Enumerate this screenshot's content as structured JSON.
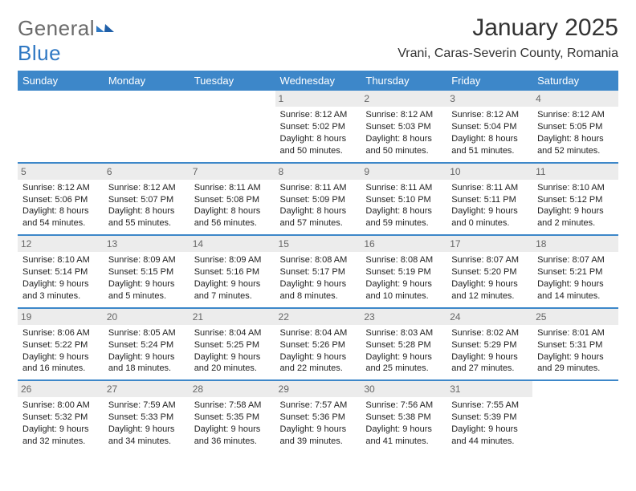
{
  "logo": {
    "text_a": "General",
    "text_b": "Blue"
  },
  "title": "January 2025",
  "subtitle": "Vrani, Caras-Severin County, Romania",
  "colors": {
    "brand_blue": "#3d87c9",
    "brand_blue_dark": "#2f78c3",
    "header_text": "#ffffff",
    "daynum_bg": "#ececec",
    "daynum_fg": "#666666",
    "body_text": "#222222",
    "grid_line": "#c7c7c7",
    "page_bg": "#ffffff"
  },
  "weekdays": [
    "Sunday",
    "Monday",
    "Tuesday",
    "Wednesday",
    "Thursday",
    "Friday",
    "Saturday"
  ],
  "start_weekday_index": 3,
  "days": [
    {
      "n": 1,
      "sunrise": "8:12 AM",
      "sunset": "5:02 PM",
      "daylight": "8 hours and 50 minutes."
    },
    {
      "n": 2,
      "sunrise": "8:12 AM",
      "sunset": "5:03 PM",
      "daylight": "8 hours and 50 minutes."
    },
    {
      "n": 3,
      "sunrise": "8:12 AM",
      "sunset": "5:04 PM",
      "daylight": "8 hours and 51 minutes."
    },
    {
      "n": 4,
      "sunrise": "8:12 AM",
      "sunset": "5:05 PM",
      "daylight": "8 hours and 52 minutes."
    },
    {
      "n": 5,
      "sunrise": "8:12 AM",
      "sunset": "5:06 PM",
      "daylight": "8 hours and 54 minutes."
    },
    {
      "n": 6,
      "sunrise": "8:12 AM",
      "sunset": "5:07 PM",
      "daylight": "8 hours and 55 minutes."
    },
    {
      "n": 7,
      "sunrise": "8:11 AM",
      "sunset": "5:08 PM",
      "daylight": "8 hours and 56 minutes."
    },
    {
      "n": 8,
      "sunrise": "8:11 AM",
      "sunset": "5:09 PM",
      "daylight": "8 hours and 57 minutes."
    },
    {
      "n": 9,
      "sunrise": "8:11 AM",
      "sunset": "5:10 PM",
      "daylight": "8 hours and 59 minutes."
    },
    {
      "n": 10,
      "sunrise": "8:11 AM",
      "sunset": "5:11 PM",
      "daylight": "9 hours and 0 minutes."
    },
    {
      "n": 11,
      "sunrise": "8:10 AM",
      "sunset": "5:12 PM",
      "daylight": "9 hours and 2 minutes."
    },
    {
      "n": 12,
      "sunrise": "8:10 AM",
      "sunset": "5:14 PM",
      "daylight": "9 hours and 3 minutes."
    },
    {
      "n": 13,
      "sunrise": "8:09 AM",
      "sunset": "5:15 PM",
      "daylight": "9 hours and 5 minutes."
    },
    {
      "n": 14,
      "sunrise": "8:09 AM",
      "sunset": "5:16 PM",
      "daylight": "9 hours and 7 minutes."
    },
    {
      "n": 15,
      "sunrise": "8:08 AM",
      "sunset": "5:17 PM",
      "daylight": "9 hours and 8 minutes."
    },
    {
      "n": 16,
      "sunrise": "8:08 AM",
      "sunset": "5:19 PM",
      "daylight": "9 hours and 10 minutes."
    },
    {
      "n": 17,
      "sunrise": "8:07 AM",
      "sunset": "5:20 PM",
      "daylight": "9 hours and 12 minutes."
    },
    {
      "n": 18,
      "sunrise": "8:07 AM",
      "sunset": "5:21 PM",
      "daylight": "9 hours and 14 minutes."
    },
    {
      "n": 19,
      "sunrise": "8:06 AM",
      "sunset": "5:22 PM",
      "daylight": "9 hours and 16 minutes."
    },
    {
      "n": 20,
      "sunrise": "8:05 AM",
      "sunset": "5:24 PM",
      "daylight": "9 hours and 18 minutes."
    },
    {
      "n": 21,
      "sunrise": "8:04 AM",
      "sunset": "5:25 PM",
      "daylight": "9 hours and 20 minutes."
    },
    {
      "n": 22,
      "sunrise": "8:04 AM",
      "sunset": "5:26 PM",
      "daylight": "9 hours and 22 minutes."
    },
    {
      "n": 23,
      "sunrise": "8:03 AM",
      "sunset": "5:28 PM",
      "daylight": "9 hours and 25 minutes."
    },
    {
      "n": 24,
      "sunrise": "8:02 AM",
      "sunset": "5:29 PM",
      "daylight": "9 hours and 27 minutes."
    },
    {
      "n": 25,
      "sunrise": "8:01 AM",
      "sunset": "5:31 PM",
      "daylight": "9 hours and 29 minutes."
    },
    {
      "n": 26,
      "sunrise": "8:00 AM",
      "sunset": "5:32 PM",
      "daylight": "9 hours and 32 minutes."
    },
    {
      "n": 27,
      "sunrise": "7:59 AM",
      "sunset": "5:33 PM",
      "daylight": "9 hours and 34 minutes."
    },
    {
      "n": 28,
      "sunrise": "7:58 AM",
      "sunset": "5:35 PM",
      "daylight": "9 hours and 36 minutes."
    },
    {
      "n": 29,
      "sunrise": "7:57 AM",
      "sunset": "5:36 PM",
      "daylight": "9 hours and 39 minutes."
    },
    {
      "n": 30,
      "sunrise": "7:56 AM",
      "sunset": "5:38 PM",
      "daylight": "9 hours and 41 minutes."
    },
    {
      "n": 31,
      "sunrise": "7:55 AM",
      "sunset": "5:39 PM",
      "daylight": "9 hours and 44 minutes."
    }
  ],
  "labels": {
    "sunrise": "Sunrise:",
    "sunset": "Sunset:",
    "daylight": "Daylight:"
  }
}
